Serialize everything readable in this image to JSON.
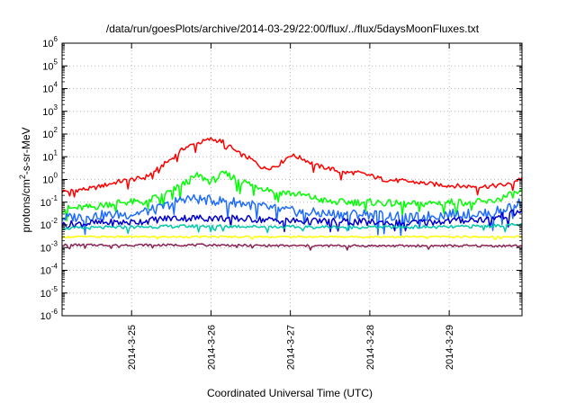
{
  "chart_data": {
    "type": "line",
    "title": "/data/run/goesPlots/archive/2014-03-29/22:00/flux/../flux/5daysMoonFluxes.txt",
    "xlabel": "Coordinated Universal Time (UTC)",
    "ylabel": {
      "prefix": "protons/cm",
      "sup": "2",
      "suffix": "-s-sr-MeV"
    },
    "x_range": [
      "2014-03-24T03:00",
      "2014-03-29T22:00"
    ],
    "x_ticks": [
      "2014-3-25",
      "2014-3-26",
      "2014-3-27",
      "2014-3-28",
      "2014-3-29"
    ],
    "y_scale": "log",
    "y_range": [
      1e-06,
      1000000.0
    ],
    "y_ticks": [
      {
        "base": "10",
        "exp": "-6",
        "value": 1e-06
      },
      {
        "base": "10",
        "exp": "-5",
        "value": 1e-05
      },
      {
        "base": "10",
        "exp": "-4",
        "value": 0.0001
      },
      {
        "base": "10",
        "exp": "-3",
        "value": 0.001
      },
      {
        "base": "10",
        "exp": "-2",
        "value": 0.01
      },
      {
        "base": "10",
        "exp": "-1",
        "value": 0.1
      },
      {
        "base": "10",
        "exp": "0",
        "value": 1.0
      },
      {
        "base": "10",
        "exp": "1",
        "value": 10.0
      },
      {
        "base": "10",
        "exp": "2",
        "value": 100.0
      },
      {
        "base": "10",
        "exp": "3",
        "value": 1000.0
      },
      {
        "base": "10",
        "exp": "4",
        "value": 10000.0
      },
      {
        "base": "10",
        "exp": "5",
        "value": 100000.0
      },
      {
        "base": "10",
        "exp": "6",
        "value": 1000000.0
      }
    ],
    "grid": true,
    "series": [
      {
        "color": "#ff0000",
        "x": [
          "2014-03-24T03:00",
          "2014-03-24T12:00",
          "2014-03-24T20:00",
          "2014-03-25T04:00",
          "2014-03-25T08:00",
          "2014-03-25T12:00",
          "2014-03-25T16:00",
          "2014-03-25T20:00",
          "2014-03-26T00:00",
          "2014-03-26T04:00",
          "2014-03-26T08:00",
          "2014-03-26T12:00",
          "2014-03-26T16:00",
          "2014-03-26T20:00",
          "2014-03-27T00:00",
          "2014-03-27T04:00",
          "2014-03-27T08:00",
          "2014-03-27T12:00",
          "2014-03-27T16:00",
          "2014-03-27T20:00",
          "2014-03-28T00:00",
          "2014-03-28T04:00",
          "2014-03-28T12:00",
          "2014-03-28T20:00",
          "2014-03-29T04:00",
          "2014-03-29T12:00",
          "2014-03-29T18:00",
          "2014-03-29T22:00"
        ],
        "y": [
          0.3,
          0.4,
          0.8,
          1.2,
          3,
          8,
          25,
          40,
          60,
          45,
          15,
          8,
          3,
          4,
          12,
          8,
          4,
          3,
          2,
          2,
          1.5,
          1,
          0.8,
          0.6,
          0.5,
          0.5,
          0.6,
          1.2
        ]
      },
      {
        "color": "#00ff00",
        "x": [
          "2014-03-24T03:00",
          "2014-03-24T12:00",
          "2014-03-24T20:00",
          "2014-03-25T04:00",
          "2014-03-25T12:00",
          "2014-03-25T20:00",
          "2014-03-26T00:00",
          "2014-03-26T04:00",
          "2014-03-26T12:00",
          "2014-03-26T20:00",
          "2014-03-27T04:00",
          "2014-03-27T12:00",
          "2014-03-28T00:00",
          "2014-03-28T12:00",
          "2014-03-29T00:00",
          "2014-03-29T12:00",
          "2014-03-29T22:00"
        ],
        "y": [
          0.05,
          0.06,
          0.1,
          0.1,
          0.3,
          1.5,
          0.8,
          1.8,
          0.6,
          0.3,
          0.2,
          0.1,
          0.1,
          0.08,
          0.1,
          0.1,
          0.3
        ]
      },
      {
        "color": "#1e6cff",
        "x": [
          "2014-03-24T03:00",
          "2014-03-24T12:00",
          "2014-03-25T00:00",
          "2014-03-25T08:00",
          "2014-03-25T16:00",
          "2014-03-26T00:00",
          "2014-03-26T08:00",
          "2014-03-26T16:00",
          "2014-03-27T00:00",
          "2014-03-27T12:00",
          "2014-03-28T00:00",
          "2014-03-28T12:00",
          "2014-03-29T00:00",
          "2014-03-29T12:00",
          "2014-03-29T22:00"
        ],
        "y": [
          0.02,
          0.025,
          0.03,
          0.05,
          0.15,
          0.12,
          0.1,
          0.06,
          0.04,
          0.03,
          0.03,
          0.02,
          0.03,
          0.03,
          0.1
        ]
      },
      {
        "color": "#0000cc",
        "x": [
          "2014-03-24T03:00",
          "2014-03-24T12:00",
          "2014-03-25T00:00",
          "2014-03-25T12:00",
          "2014-03-26T00:00",
          "2014-03-26T12:00",
          "2014-03-27T00:00",
          "2014-03-27T12:00",
          "2014-03-28T00:00",
          "2014-03-28T12:00",
          "2014-03-29T00:00",
          "2014-03-29T12:00",
          "2014-03-29T22:00"
        ],
        "y": [
          0.01,
          0.012,
          0.013,
          0.02,
          0.02,
          0.018,
          0.015,
          0.014,
          0.013,
          0.012,
          0.015,
          0.018,
          0.04
        ]
      },
      {
        "color": "#00c8aa",
        "x": [
          "2014-03-24T03:00",
          "2014-03-25T00:00",
          "2014-03-26T00:00",
          "2014-03-27T00:00",
          "2014-03-28T00:00",
          "2014-03-29T00:00",
          "2014-03-29T22:00"
        ],
        "y": [
          0.007,
          0.008,
          0.009,
          0.008,
          0.008,
          0.008,
          0.01
        ]
      },
      {
        "color": "#ffff00",
        "x": [
          "2014-03-24T03:00",
          "2014-03-25T00:00",
          "2014-03-26T00:00",
          "2014-03-27T00:00",
          "2014-03-28T00:00",
          "2014-03-29T00:00",
          "2014-03-29T22:00"
        ],
        "y": [
          0.003,
          0.003,
          0.003,
          0.003,
          0.003,
          0.003,
          0.003
        ]
      },
      {
        "color": "#8b2252",
        "x": [
          "2014-03-24T03:00",
          "2014-03-25T00:00",
          "2014-03-26T00:00",
          "2014-03-27T00:00",
          "2014-03-28T00:00",
          "2014-03-29T00:00",
          "2014-03-29T22:00"
        ],
        "y": [
          0.0013,
          0.0013,
          0.0013,
          0.0012,
          0.0012,
          0.0012,
          0.0012
        ]
      }
    ]
  }
}
